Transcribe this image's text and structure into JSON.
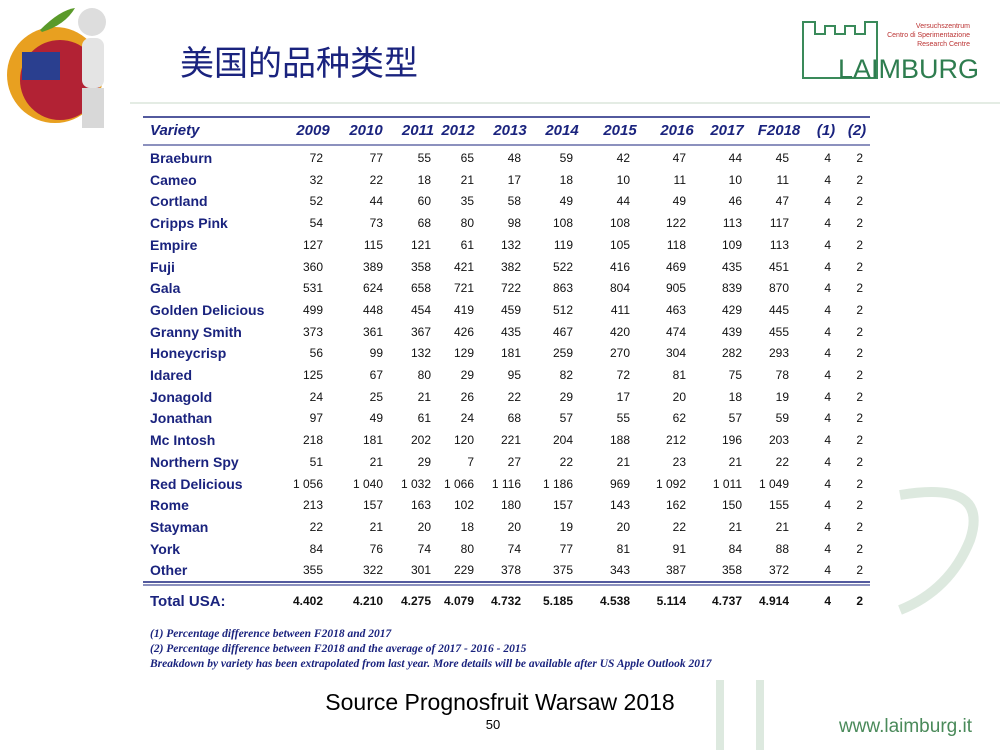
{
  "title": "美国的品种类型",
  "logo": {
    "lines": [
      "Versuchszentrum",
      "Centro di Sperimentazione",
      "Research Centre"
    ],
    "name": "LAIMBURG"
  },
  "table": {
    "header": [
      "Variety",
      "2009",
      "2010",
      "2011",
      "2012",
      "2013",
      "2014",
      "2015",
      "2016",
      "2017",
      "F2018",
      "(1)",
      "(2)"
    ],
    "rows": [
      [
        "Braeburn",
        "72",
        "77",
        "55",
        "65",
        "48",
        "59",
        "42",
        "47",
        "44",
        "45",
        "4",
        "2"
      ],
      [
        "Cameo",
        "32",
        "22",
        "18",
        "21",
        "17",
        "18",
        "10",
        "11",
        "10",
        "11",
        "4",
        "2"
      ],
      [
        "Cortland",
        "52",
        "44",
        "60",
        "35",
        "58",
        "49",
        "44",
        "49",
        "46",
        "47",
        "4",
        "2"
      ],
      [
        "Cripps Pink",
        "54",
        "73",
        "68",
        "80",
        "98",
        "108",
        "108",
        "122",
        "113",
        "117",
        "4",
        "2"
      ],
      [
        "Empire",
        "127",
        "115",
        "121",
        "61",
        "132",
        "119",
        "105",
        "118",
        "109",
        "113",
        "4",
        "2"
      ],
      [
        "Fuji",
        "360",
        "389",
        "358",
        "421",
        "382",
        "522",
        "416",
        "469",
        "435",
        "451",
        "4",
        "2"
      ],
      [
        "Gala",
        "531",
        "624",
        "658",
        "721",
        "722",
        "863",
        "804",
        "905",
        "839",
        "870",
        "4",
        "2"
      ],
      [
        "Golden Delicious",
        "499",
        "448",
        "454",
        "419",
        "459",
        "512",
        "411",
        "463",
        "429",
        "445",
        "4",
        "2"
      ],
      [
        "Granny Smith",
        "373",
        "361",
        "367",
        "426",
        "435",
        "467",
        "420",
        "474",
        "439",
        "455",
        "4",
        "2"
      ],
      [
        "Honeycrisp",
        "56",
        "99",
        "132",
        "129",
        "181",
        "259",
        "270",
        "304",
        "282",
        "293",
        "4",
        "2"
      ],
      [
        "Idared",
        "125",
        "67",
        "80",
        "29",
        "95",
        "82",
        "72",
        "81",
        "75",
        "78",
        "4",
        "2"
      ],
      [
        "Jonagold",
        "24",
        "25",
        "21",
        "26",
        "22",
        "29",
        "17",
        "20",
        "18",
        "19",
        "4",
        "2"
      ],
      [
        "Jonathan",
        "97",
        "49",
        "61",
        "24",
        "68",
        "57",
        "55",
        "62",
        "57",
        "59",
        "4",
        "2"
      ],
      [
        "Mc Intosh",
        "218",
        "181",
        "202",
        "120",
        "221",
        "204",
        "188",
        "212",
        "196",
        "203",
        "4",
        "2"
      ],
      [
        "Northern Spy",
        "51",
        "21",
        "29",
        "7",
        "27",
        "22",
        "21",
        "23",
        "21",
        "22",
        "4",
        "2"
      ],
      [
        "Red Delicious",
        "1 056",
        "1 040",
        "1 032",
        "1 066",
        "1 116",
        "1 186",
        "969",
        "1 092",
        "1 011",
        "1 049",
        "4",
        "2"
      ],
      [
        "Rome",
        "213",
        "157",
        "163",
        "102",
        "180",
        "157",
        "143",
        "162",
        "150",
        "155",
        "4",
        "2"
      ],
      [
        "Stayman",
        "22",
        "21",
        "20",
        "18",
        "20",
        "19",
        "20",
        "22",
        "21",
        "21",
        "4",
        "2"
      ],
      [
        "York",
        "84",
        "76",
        "74",
        "80",
        "74",
        "77",
        "81",
        "91",
        "84",
        "88",
        "4",
        "2"
      ],
      [
        "Other",
        "355",
        "322",
        "301",
        "229",
        "378",
        "375",
        "343",
        "387",
        "358",
        "372",
        "4",
        "2"
      ]
    ],
    "total": [
      "Total USA:",
      "4.402",
      "4.210",
      "4.275",
      "4.079",
      "4.732",
      "5.185",
      "4.538",
      "5.114",
      "4.737",
      "4.914",
      "4",
      "2"
    ]
  },
  "notes": [
    "(1) Percentage difference between F2018 and 2017",
    "(2) Percentage difference between F2018 and the average of 2017 - 2016 - 2015",
    "Breakdown by variety has been extrapolated from last year. More details will be available after US Apple Outlook 2017"
  ],
  "source": "Source Prognosfruit  Warsaw 2018",
  "page": "50",
  "website": "www.laimburg.it"
}
